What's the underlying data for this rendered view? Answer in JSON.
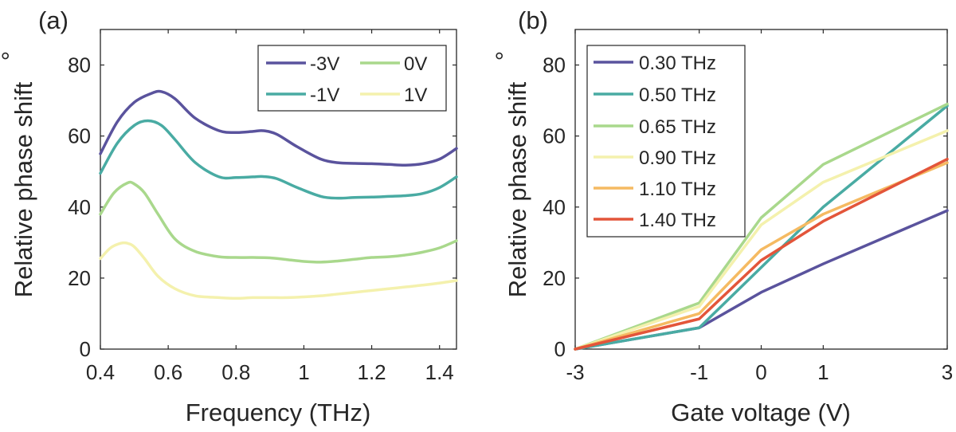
{
  "chart_data": [
    {
      "type": "line",
      "panel_label": "(a)",
      "xlabel": "Frequency (THz)",
      "ylabel": "Relative phase shift",
      "ylabel_unit": "°",
      "xlim": [
        0.4,
        1.45
      ],
      "ylim": [
        0,
        90
      ],
      "xticks": [
        0.4,
        0.6,
        0.8,
        1.0,
        1.2,
        1.4
      ],
      "xtick_labels": [
        "0.4",
        "0.6",
        "0.8",
        "1",
        "1.2",
        "1.4"
      ],
      "yticks": [
        0,
        20,
        40,
        60,
        80
      ],
      "ytick_labels": [
        "0",
        "20",
        "40",
        "60",
        "80"
      ],
      "grid": false,
      "legend_position": "top-right",
      "series": [
        {
          "name": "-3V",
          "color": "#5a539d",
          "x": [
            0.4,
            0.45,
            0.5,
            0.55,
            0.58,
            0.62,
            0.68,
            0.75,
            0.8,
            0.85,
            0.88,
            0.92,
            0.98,
            1.05,
            1.1,
            1.15,
            1.2,
            1.25,
            1.3,
            1.35,
            1.4,
            1.45
          ],
          "y": [
            55,
            64,
            69.5,
            72,
            72.5,
            70.5,
            65,
            61.5,
            61,
            61.3,
            61.5,
            60.5,
            57,
            53.5,
            52.5,
            52.3,
            52.2,
            52,
            51.8,
            52.2,
            53.5,
            56.5
          ]
        },
        {
          "name": "-1V",
          "color": "#49aba3",
          "x": [
            0.4,
            0.45,
            0.5,
            0.54,
            0.58,
            0.62,
            0.68,
            0.75,
            0.8,
            0.85,
            0.88,
            0.92,
            0.98,
            1.05,
            1.1,
            1.15,
            1.2,
            1.25,
            1.3,
            1.35,
            1.4,
            1.45
          ],
          "y": [
            49.5,
            58,
            63,
            64.3,
            63,
            59,
            52.5,
            48.5,
            48.3,
            48.5,
            48.6,
            48,
            45.5,
            43,
            42.5,
            42.7,
            42.8,
            43,
            43.2,
            43.8,
            45.5,
            48.5
          ]
        },
        {
          "name": "0V",
          "color": "#a9d88c",
          "x": [
            0.4,
            0.44,
            0.48,
            0.5,
            0.53,
            0.57,
            0.62,
            0.68,
            0.75,
            0.8,
            0.85,
            0.9,
            0.95,
            1.0,
            1.05,
            1.1,
            1.15,
            1.2,
            1.25,
            1.3,
            1.35,
            1.4,
            1.45
          ],
          "y": [
            38,
            44,
            46.8,
            46.5,
            44,
            38,
            31,
            27.5,
            26,
            25.8,
            25.8,
            25.7,
            25.2,
            24.7,
            24.5,
            24.8,
            25.3,
            25.8,
            26,
            26.5,
            27.3,
            28.5,
            30.5
          ]
        },
        {
          "name": "1V",
          "color": "#f4f1ad",
          "x": [
            0.4,
            0.43,
            0.46,
            0.48,
            0.5,
            0.53,
            0.57,
            0.62,
            0.68,
            0.75,
            0.8,
            0.85,
            0.9,
            0.95,
            1.0,
            1.05,
            1.1,
            1.15,
            1.2,
            1.25,
            1.3,
            1.35,
            1.4,
            1.45
          ],
          "y": [
            25.5,
            28.5,
            29.8,
            29.8,
            28.8,
            25.5,
            20.5,
            17,
            15,
            14.5,
            14.3,
            14.5,
            14.5,
            14.5,
            14.7,
            15,
            15.5,
            16,
            16.5,
            17,
            17.5,
            18,
            18.6,
            19.3
          ]
        }
      ]
    },
    {
      "type": "line",
      "panel_label": "(b)",
      "xlabel": "Gate voltage (V)",
      "ylabel": "Relative phase shift",
      "ylabel_unit": "°",
      "xlim": [
        -3,
        3
      ],
      "ylim": [
        0,
        90
      ],
      "xticks": [
        -3,
        -1,
        0,
        1,
        3
      ],
      "xtick_labels": [
        "-3",
        "-1",
        "0",
        "1",
        "3"
      ],
      "yticks": [
        0,
        20,
        40,
        60,
        80
      ],
      "ytick_labels": [
        "0",
        "20",
        "40",
        "60",
        "80"
      ],
      "grid": false,
      "legend_position": "top-left",
      "x": [
        -3,
        -1,
        0,
        1,
        3
      ],
      "series": [
        {
          "name": "0.30 THz",
          "color": "#5a539d",
          "values": [
            0,
            6,
            16,
            24,
            39
          ]
        },
        {
          "name": "0.50 THz",
          "color": "#49aba3",
          "values": [
            0,
            6,
            23,
            40,
            68.5
          ]
        },
        {
          "name": "0.65 THz",
          "color": "#a9d88c",
          "values": [
            0,
            13,
            37,
            52,
            69
          ]
        },
        {
          "name": "0.90 THz",
          "color": "#f4f1ad",
          "values": [
            0,
            12,
            35,
            47,
            61.5
          ]
        },
        {
          "name": "1.10 THz",
          "color": "#f5ba62",
          "values": [
            0,
            10,
            28,
            38,
            52.5
          ]
        },
        {
          "name": "1.40 THz",
          "color": "#e3553a",
          "values": [
            0,
            8.5,
            25,
            36,
            53.5
          ]
        }
      ]
    }
  ]
}
